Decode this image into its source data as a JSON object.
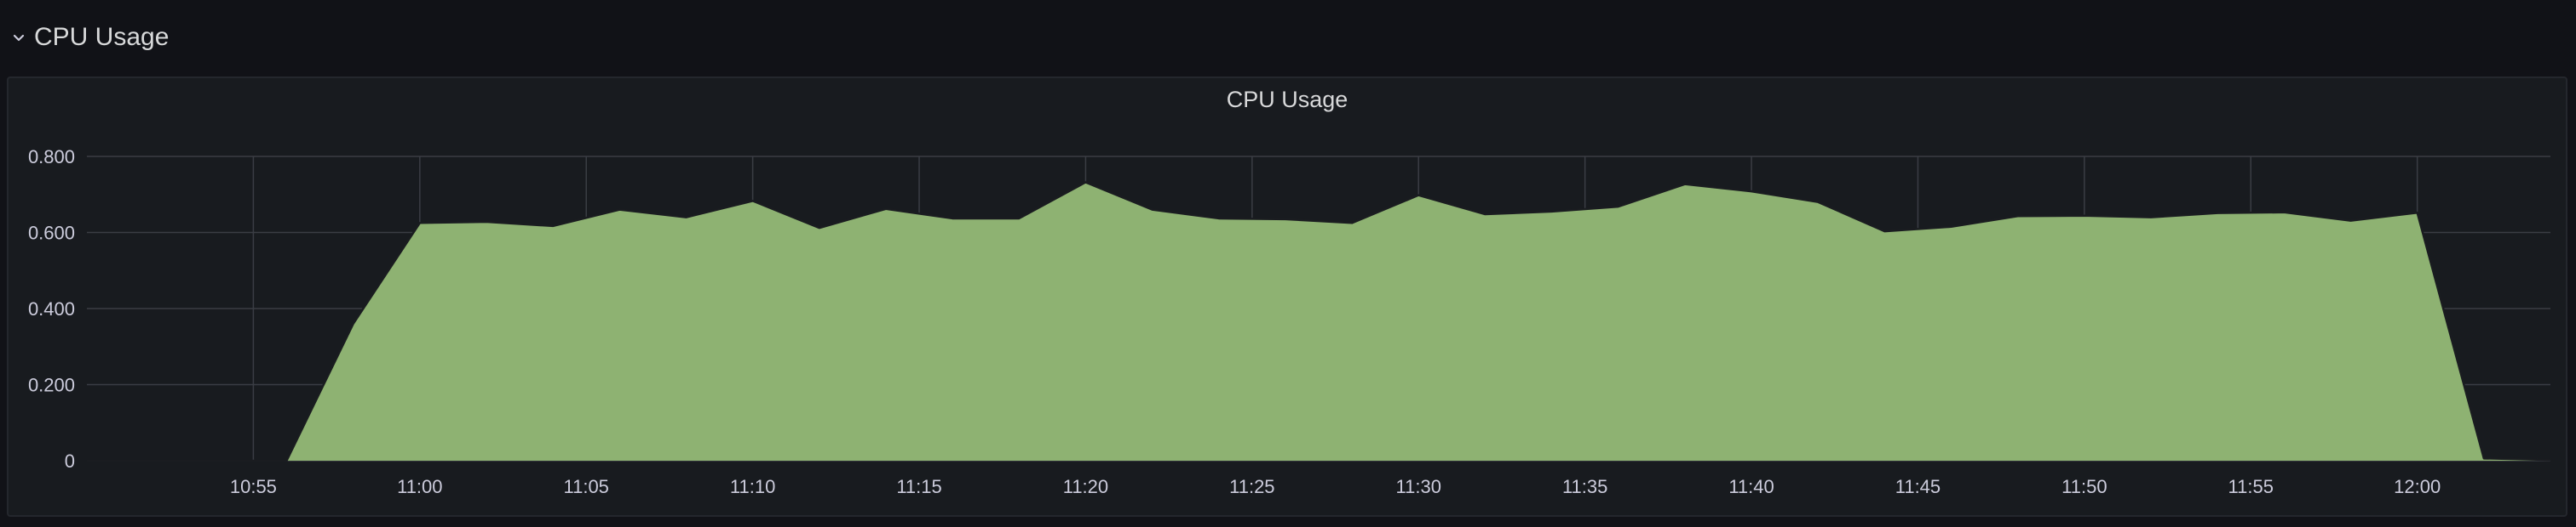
{
  "row": {
    "title": "CPU Usage",
    "collapse_icon": "chevron-down-icon"
  },
  "panel": {
    "title": "CPU Usage"
  },
  "colors": {
    "background": "#111217",
    "panel_bg": "#181b1f",
    "grid": "#3a3d44",
    "series_fill": "#8eb272",
    "series_line": "#8eb272"
  },
  "chart_data": {
    "type": "area",
    "title": "CPU Usage",
    "xlabel": "",
    "ylabel": "",
    "ylim": [
      0,
      0.8
    ],
    "yticks": [
      0,
      0.2,
      0.4,
      0.6,
      0.8
    ],
    "ytick_labels": [
      "0",
      "0.200",
      "0.400",
      "0.600",
      "0.800"
    ],
    "xlim": [
      "10:50",
      "12:04"
    ],
    "xticks": [
      "10:55",
      "11:00",
      "11:05",
      "11:10",
      "11:15",
      "11:20",
      "11:25",
      "11:30",
      "11:35",
      "11:40",
      "11:45",
      "11:50",
      "11:55",
      "12:00"
    ],
    "grid": true,
    "legend": "none",
    "series": [
      {
        "x": [
          "10:50",
          "10:52",
          "10:54",
          "10:56",
          "10:58",
          "11:00",
          "11:02",
          "11:04",
          "11:06",
          "11:08",
          "11:10",
          "11:12",
          "11:14",
          "11:16",
          "11:18",
          "11:20",
          "11:22",
          "11:24",
          "11:26",
          "11:28",
          "11:30",
          "11:32",
          "11:34",
          "11:36",
          "11:38",
          "11:40",
          "11:42",
          "11:44",
          "11:46",
          "11:48",
          "11:50",
          "11:52",
          "11:54",
          "11:56",
          "11:58",
          "12:00",
          "12:02",
          "12:04"
        ],
        "values": [
          0,
          0,
          0,
          0,
          0.36,
          0.625,
          0.628,
          0.617,
          0.66,
          0.64,
          0.683,
          0.612,
          0.662,
          0.637,
          0.637,
          0.732,
          0.66,
          0.637,
          0.635,
          0.625,
          0.698,
          0.648,
          0.655,
          0.668,
          0.727,
          0.708,
          0.68,
          0.603,
          0.615,
          0.643,
          0.644,
          0.64,
          0.651,
          0.653,
          0.631,
          0.652,
          0.006,
          0.002
        ]
      }
    ]
  }
}
